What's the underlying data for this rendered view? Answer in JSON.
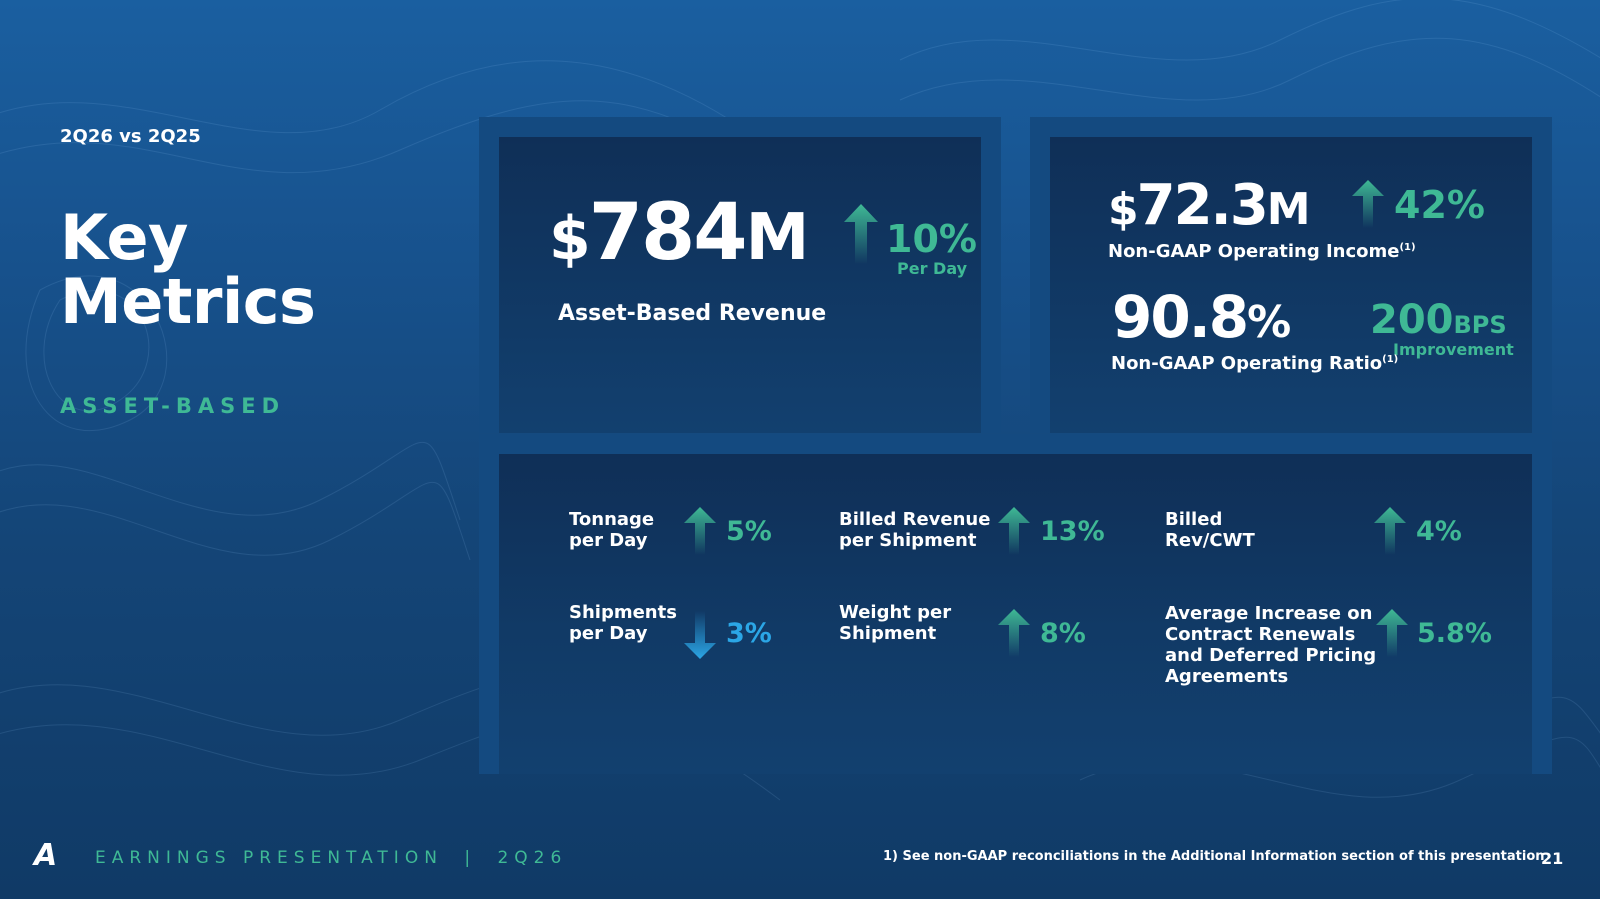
{
  "header": {
    "comparison": "2Q26 vs 2Q25",
    "title_line1": "Key",
    "title_line2": "Metrics",
    "section": "ASSET-BASED"
  },
  "revenue": {
    "dollar": "$",
    "value": "784",
    "unit": "M",
    "change": "10%",
    "change_note": "Per Day",
    "label": "Asset-Based Revenue"
  },
  "operating_income": {
    "dollar": "$",
    "value": "72.3",
    "unit": "M",
    "change": "42%",
    "label": "Non-GAAP Operating Income",
    "footnote": "(1)"
  },
  "operating_ratio": {
    "value": "90.8",
    "unit": "%",
    "change_value": "200",
    "change_unit": "BPS",
    "change_note": "Improvement",
    "label": "Non-GAAP Operating Ratio",
    "footnote": "(1)"
  },
  "metrics": [
    {
      "line1": "Tonnage",
      "line2": "per Day",
      "line3": "",
      "line4": "",
      "value": "5%",
      "direction": "up"
    },
    {
      "line1": "Billed Revenue",
      "line2": "per Shipment",
      "line3": "",
      "line4": "",
      "value": "13%",
      "direction": "up"
    },
    {
      "line1": "Billed",
      "line2": "Rev/CWT",
      "line3": "",
      "line4": "",
      "value": "4%",
      "direction": "up"
    },
    {
      "line1": "Shipments",
      "line2": "per Day",
      "line3": "",
      "line4": "",
      "value": "3%",
      "direction": "down"
    },
    {
      "line1": "Weight per",
      "line2": "Shipment",
      "line3": "",
      "line4": "",
      "value": "8%",
      "direction": "up"
    },
    {
      "line1": "Average Increase on",
      "line2": "Contract Renewals",
      "line3": "and Deferred Pricing",
      "line4": "Agreements",
      "value": "5.8%",
      "direction": "up"
    }
  ],
  "footer": {
    "logo": "A",
    "presentation": "EARNINGS PRESENTATION",
    "separator": "|",
    "period": "2Q26",
    "note": "1)  See non-GAAP reconciliations in the Additional Information section of this presentation",
    "page": "21"
  },
  "colors": {
    "accent_green": "#3fb995",
    "accent_blue": "#2ba6e6",
    "background": "#17518c"
  },
  "icons": {
    "up": "arrow-up-icon",
    "down": "arrow-down-icon"
  }
}
